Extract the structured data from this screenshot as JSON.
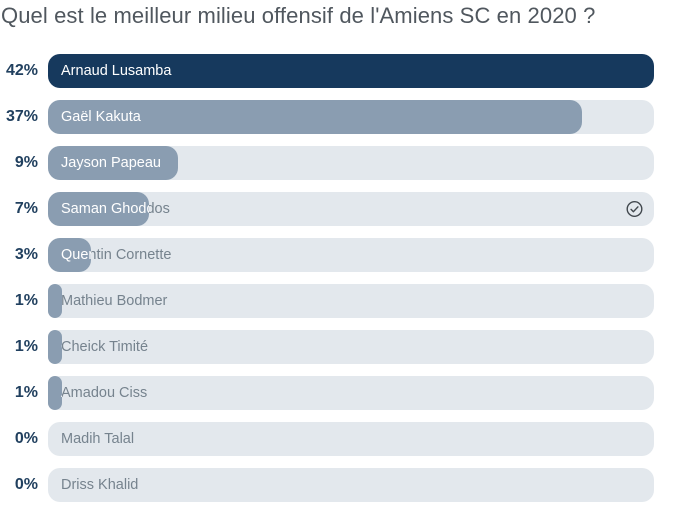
{
  "chart_data": {
    "type": "bar",
    "orientation": "horizontal",
    "title": "Quel est le meilleur milieu offensif de l'Amiens SC en 2020 ?",
    "categories": [
      "Arnaud Lusamba",
      "Gaël Kakuta",
      "Jayson Papeau",
      "Saman Ghoddos",
      "Quentin Cornette",
      "Mathieu Bodmer",
      "Cheick Timité",
      "Amadou Ciss",
      "Madih Talal",
      "Driss Khalid"
    ],
    "values": [
      42,
      37,
      9,
      7,
      3,
      1,
      1,
      1,
      0,
      0
    ],
    "value_labels": [
      "42%",
      "37%",
      "9%",
      "7%",
      "3%",
      "1%",
      "1%",
      "1%",
      "0%",
      "0%"
    ],
    "bar_scale_max": 42,
    "leader_index": 0,
    "voted_index": 3,
    "legend": "none",
    "grid": "off"
  },
  "icons": {
    "voted": "check-circle-icon"
  },
  "colors": {
    "leader_fill": "#16395d",
    "fill": "#8a9db1",
    "track": "#e3e8ed",
    "percent_text": "#21405f",
    "title_text": "#50575e",
    "label_on_fill": "#ffffff",
    "label_on_track": "#76838e",
    "check": "#42484e",
    "background": "#ffffff"
  }
}
